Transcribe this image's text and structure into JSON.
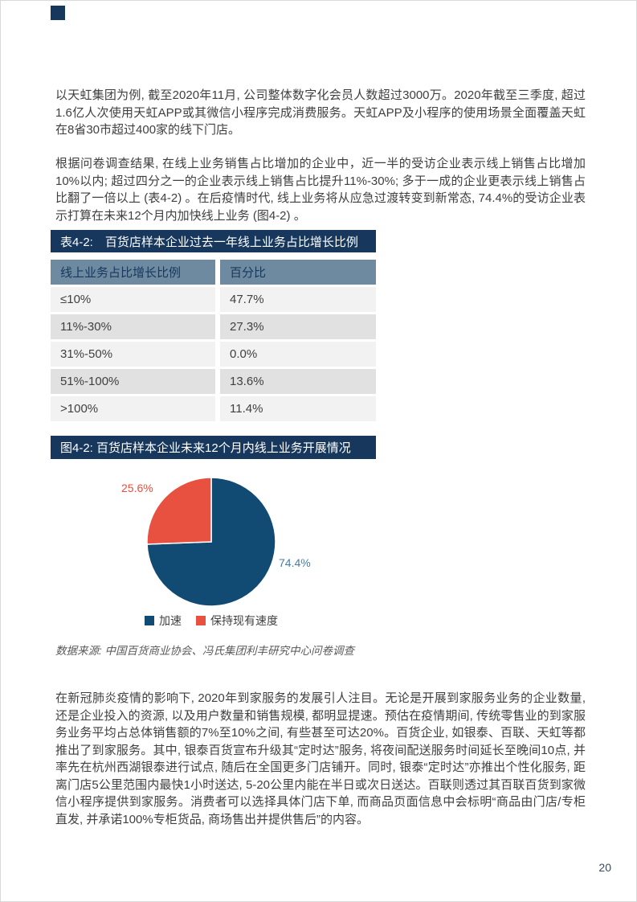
{
  "page": {
    "number": "20"
  },
  "paragraphs": {
    "p1": "以天虹集团为例, 截至2020年11月, 公司整体数字化会员人数超过3000万。2020年截至三季度, 超过1.6亿人次使用天虹APP或其微信小程序完成消费服务。天虹APP及小程序的使用场景全面覆盖天虹在8省30市超过400家的线下门店。",
    "p2": "根据问卷调查结果, 在线上业务销售占比增加的企业中，近一半的受访企业表示线上销售占比增加10%以内; 超过四分之一的企业表示线上销售占比提升11%-30%; 多于一成的企业更表示线上销售占比翻了一倍以上 (表4-2) 。在后疫情时代, 线上业务将从应急过渡转变到新常态, 74.4%的受访企业表示打算在未来12个月内加快线上业务 (图4-2) 。",
    "p3": "在新冠肺炎疫情的影响下, 2020年到家服务的发展引人注目。无论是开展到家服务业务的企业数量, 还是企业投入的资源, 以及用户数量和销售规模, 都明显提速。预估在疫情期间, 传统零售业的到家服务业务平均占总体销售额的7%至10%之间, 有些甚至可达20%。百货企业, 如银泰、百联、天虹等都推出了到家服务。其中, 银泰百货宣布升级其“定时达”服务, 将夜间配送服务时间延长至晚间10点, 并率先在杭州西湖银泰进行试点, 随后在全国更多门店铺开。同时, 银泰“定时达”亦推出个性化服务, 距离门店5公里范围内最快1小时送达, 5-20公里内能在半日或次日送达。百联则透过其百联百货到家微信小程序提供到家服务。消费者可以选择具体门店下单, 而商品页面信息中会标明“商品由门店/专柜直发, 并承诺100%专柜货品, 商场售出并提供售后”的内容。"
  },
  "table": {
    "banner": "表4-2:　百货店样本企业过去一年线上业务占比增长比例",
    "columns": [
      "线上业务占比增长比例",
      "百分比"
    ],
    "rows": [
      [
        "≤10%",
        "47.7%"
      ],
      [
        "11%-30%",
        "27.3%"
      ],
      [
        "31%-50%",
        "0.0%"
      ],
      [
        "51%-100%",
        "13.6%"
      ],
      [
        ">100%",
        "11.4%"
      ]
    ]
  },
  "figure": {
    "banner": "图4-2: 百货店样本企业未来12个月内线上业务开展情况",
    "source": "数据来源: 中国百货商业协会、冯氏集团利丰研究中心问卷调查"
  },
  "chart_data": {
    "type": "pie",
    "title": "百货店样本企业未来12个月内线上业务开展情况",
    "labels": [
      "加速",
      "保持现有速度"
    ],
    "values": [
      74.4,
      25.6
    ],
    "colors": [
      "#114a72",
      "#e8513f"
    ],
    "start_angle_deg": 0,
    "direction": "clockwise",
    "legend_position": "bottom",
    "data_label_format": "percent"
  },
  "colors": {
    "banner_bg": "#17375d",
    "table_header_bg": "#6d8aa0",
    "table_header_text": "#17375d",
    "row_light": "#f2f2f2",
    "row_dark": "#e1e1e1",
    "pie_blue": "#114a72",
    "pie_red": "#e8513f",
    "body_text": "#3f3f3f"
  }
}
